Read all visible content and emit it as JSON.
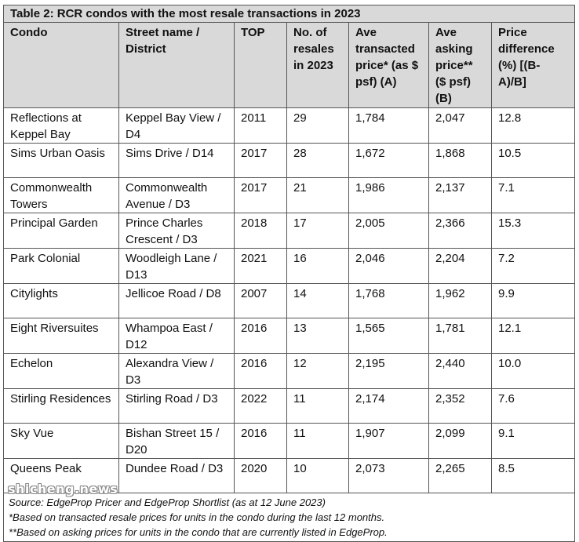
{
  "title": "Table 2: RCR condos with the most resale transactions in 2023",
  "headers": [
    "Condo",
    "Street name / District",
    "TOP",
    "No. of resales in 2023",
    "Ave transacted price* (as $ psf) (A)",
    "Ave asking price** ($ psf) (B)",
    "Price difference (%) [(B-A)/B]"
  ],
  "rows": [
    [
      "Reflections at Keppel Bay",
      "Keppel Bay View / D4",
      "2011",
      "29",
      "1,784",
      "2,047",
      "12.8"
    ],
    [
      "Sims Urban Oasis",
      "Sims Drive / D14",
      "2017",
      "28",
      "1,672",
      "1,868",
      "10.5"
    ],
    [
      "Commonwealth Towers",
      "Commonwealth Avenue / D3",
      "2017",
      "21",
      "1,986",
      "2,137",
      "7.1"
    ],
    [
      "Principal Garden",
      "Prince Charles Crescent / D3",
      "2018",
      "17",
      "2,005",
      "2,366",
      "15.3"
    ],
    [
      "Park Colonial",
      "Woodleigh Lane / D13",
      "2021",
      "16",
      "2,046",
      "2,204",
      "7.2"
    ],
    [
      "Citylights",
      "Jellicoe Road / D8",
      "2007",
      "14",
      "1,768",
      "1,962",
      "9.9"
    ],
    [
      "Eight Riversuites",
      "Whampoa East / D12",
      "2016",
      "13",
      "1,565",
      "1,781",
      "12.1"
    ],
    [
      "Echelon",
      "Alexandra View / D3",
      "2016",
      "12",
      "2,195",
      "2,440",
      "10.0"
    ],
    [
      "Stirling Residences",
      "Stirling Road / D3",
      "2022",
      "11",
      "2,174",
      "2,352",
      "7.6"
    ],
    [
      "Sky Vue",
      "Bishan Street 15 / D20",
      "2016",
      "11",
      "1,907",
      "2,099",
      "9.1"
    ],
    [
      "Queens Peak",
      "Dundee Road / D3",
      "2020",
      "10",
      "2,073",
      "2,265",
      "8.5"
    ]
  ],
  "footnotes": [
    "Source: EdgeProp Pricer and EdgeProp Shortlist (as at 12 June 2023)",
    "*Based on transacted resale prices for units in the condo during the last 12 months.",
    "**Based on asking prices for units in the condo that are currently listed in EdgeProp."
  ],
  "watermark": "shicheng.news"
}
